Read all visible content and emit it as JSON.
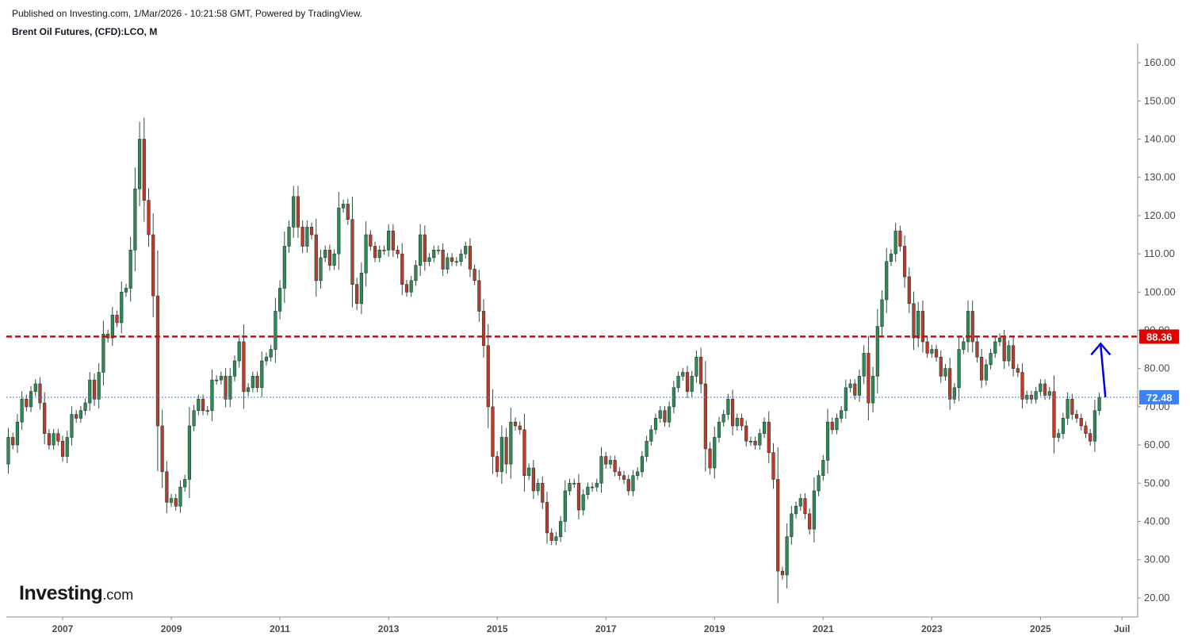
{
  "header": {
    "published": "Published on Investing.com, 1/Mar/2026 - 10:21:58 GMT, Powered by TradingView.",
    "symbol": "Brent Oil Futures, (CFD):LCO, M"
  },
  "logo": {
    "brand": "Investing",
    "suffix": ".com"
  },
  "colors": {
    "up": "#2e8b57",
    "down": "#c0392b",
    "wick": "#2f4f3f",
    "resistance": "#e00000",
    "current": "#3b82f6",
    "arrow": "#0000ee",
    "axis": "#8a8a8a"
  },
  "chart_data": {
    "type": "candlestick",
    "title": "Brent Oil Futures, (CFD):LCO, M",
    "interval": "M",
    "ylim": [
      15,
      165
    ],
    "xlim": [
      "2006-01",
      "2026-09"
    ],
    "y_ticks": [
      "20.00",
      "30.00",
      "40.00",
      "50.00",
      "60.00",
      "70.00",
      "80.00",
      "90.00",
      "100.00",
      "110.00",
      "120.00",
      "130.00",
      "140.00",
      "150.00",
      "160.00"
    ],
    "x_ticks": [
      "2007",
      "2009",
      "2011",
      "2013",
      "2015",
      "2017",
      "2019",
      "2021",
      "2023",
      "2025",
      "Juil"
    ],
    "horizontal_lines": [
      {
        "value": 88.36,
        "label": "88.36",
        "style": "dashed",
        "color": "#e00000"
      },
      {
        "value": 72.48,
        "label": "72.48",
        "style": "dotted",
        "color": "#3b82f6"
      }
    ],
    "annotation": {
      "type": "arrow",
      "from_date": "2026-03",
      "from_value": 72.5,
      "to_date": "2026-03",
      "to_value": 86.5,
      "color": "#0000ee"
    },
    "close_series": [
      [
        "2006-01",
        62
      ],
      [
        "2006-02",
        60
      ],
      [
        "2006-03",
        66
      ],
      [
        "2006-04",
        72
      ],
      [
        "2006-05",
        70
      ],
      [
        "2006-06",
        74
      ],
      [
        "2006-07",
        76
      ],
      [
        "2006-08",
        71
      ],
      [
        "2006-09",
        63
      ],
      [
        "2006-10",
        60
      ],
      [
        "2006-11",
        63
      ],
      [
        "2006-12",
        61
      ],
      [
        "2007-01",
        57
      ],
      [
        "2007-02",
        62
      ],
      [
        "2007-03",
        68
      ],
      [
        "2007-04",
        67
      ],
      [
        "2007-05",
        69
      ],
      [
        "2007-06",
        71
      ],
      [
        "2007-07",
        77
      ],
      [
        "2007-08",
        72
      ],
      [
        "2007-09",
        79
      ],
      [
        "2007-10",
        89
      ],
      [
        "2007-11",
        88
      ],
      [
        "2007-12",
        94
      ],
      [
        "2008-01",
        92
      ],
      [
        "2008-02",
        100
      ],
      [
        "2008-03",
        101
      ],
      [
        "2008-04",
        111
      ],
      [
        "2008-05",
        127
      ],
      [
        "2008-06",
        140
      ],
      [
        "2008-07",
        124
      ],
      [
        "2008-08",
        115
      ],
      [
        "2008-09",
        99
      ],
      [
        "2008-10",
        65
      ],
      [
        "2008-11",
        53
      ],
      [
        "2008-12",
        45
      ],
      [
        "2009-01",
        46
      ],
      [
        "2009-02",
        44
      ],
      [
        "2009-03",
        49
      ],
      [
        "2009-04",
        51
      ],
      [
        "2009-05",
        65
      ],
      [
        "2009-06",
        69
      ],
      [
        "2009-07",
        72
      ],
      [
        "2009-08",
        69
      ],
      [
        "2009-09",
        69
      ],
      [
        "2009-10",
        77
      ],
      [
        "2009-11",
        77
      ],
      [
        "2009-12",
        78
      ],
      [
        "2010-01",
        72
      ],
      [
        "2010-02",
        78
      ],
      [
        "2010-03",
        82
      ],
      [
        "2010-04",
        87
      ],
      [
        "2010-05",
        74
      ],
      [
        "2010-06",
        75
      ],
      [
        "2010-07",
        78
      ],
      [
        "2010-08",
        75
      ],
      [
        "2010-09",
        82
      ],
      [
        "2010-10",
        83
      ],
      [
        "2010-11",
        85
      ],
      [
        "2010-12",
        95
      ],
      [
        "2011-01",
        101
      ],
      [
        "2011-02",
        112
      ],
      [
        "2011-03",
        117
      ],
      [
        "2011-04",
        125
      ],
      [
        "2011-05",
        117
      ],
      [
        "2011-06",
        112
      ],
      [
        "2011-07",
        117
      ],
      [
        "2011-08",
        115
      ],
      [
        "2011-09",
        103
      ],
      [
        "2011-10",
        109
      ],
      [
        "2011-11",
        111
      ],
      [
        "2011-12",
        107
      ],
      [
        "2012-01",
        110
      ],
      [
        "2012-02",
        122
      ],
      [
        "2012-03",
        123
      ],
      [
        "2012-04",
        119
      ],
      [
        "2012-05",
        102
      ],
      [
        "2012-06",
        97
      ],
      [
        "2012-07",
        105
      ],
      [
        "2012-08",
        115
      ],
      [
        "2012-09",
        112
      ],
      [
        "2012-10",
        109
      ],
      [
        "2012-11",
        111
      ],
      [
        "2012-12",
        111
      ],
      [
        "2013-01",
        116
      ],
      [
        "2013-02",
        111
      ],
      [
        "2013-03",
        110
      ],
      [
        "2013-04",
        102
      ],
      [
        "2013-05",
        100
      ],
      [
        "2013-06",
        103
      ],
      [
        "2013-07",
        107
      ],
      [
        "2013-08",
        115
      ],
      [
        "2013-09",
        108
      ],
      [
        "2013-10",
        109
      ],
      [
        "2013-11",
        111
      ],
      [
        "2013-12",
        111
      ],
      [
        "2014-01",
        106
      ],
      [
        "2014-02",
        109
      ],
      [
        "2014-03",
        108
      ],
      [
        "2014-04",
        108
      ],
      [
        "2014-05",
        110
      ],
      [
        "2014-06",
        112
      ],
      [
        "2014-07",
        106
      ],
      [
        "2014-08",
        103
      ],
      [
        "2014-09",
        95
      ],
      [
        "2014-10",
        86
      ],
      [
        "2014-11",
        70
      ],
      [
        "2014-12",
        57
      ],
      [
        "2015-01",
        53
      ],
      [
        "2015-02",
        62
      ],
      [
        "2015-03",
        55
      ],
      [
        "2015-04",
        66
      ],
      [
        "2015-05",
        65
      ],
      [
        "2015-06",
        64
      ],
      [
        "2015-07",
        52
      ],
      [
        "2015-08",
        54
      ],
      [
        "2015-09",
        48
      ],
      [
        "2015-10",
        50
      ],
      [
        "2015-11",
        45
      ],
      [
        "2015-12",
        37
      ],
      [
        "2016-01",
        35
      ],
      [
        "2016-02",
        36
      ],
      [
        "2016-03",
        40
      ],
      [
        "2016-04",
        48
      ],
      [
        "2016-05",
        50
      ],
      [
        "2016-06",
        50
      ],
      [
        "2016-07",
        43
      ],
      [
        "2016-08",
        47
      ],
      [
        "2016-09",
        49
      ],
      [
        "2016-10",
        49
      ],
      [
        "2016-11",
        50
      ],
      [
        "2016-12",
        57
      ],
      [
        "2017-01",
        55
      ],
      [
        "2017-02",
        56
      ],
      [
        "2017-03",
        53
      ],
      [
        "2017-04",
        52
      ],
      [
        "2017-05",
        51
      ],
      [
        "2017-06",
        48
      ],
      [
        "2017-07",
        52
      ],
      [
        "2017-08",
        53
      ],
      [
        "2017-09",
        57
      ],
      [
        "2017-10",
        61
      ],
      [
        "2017-11",
        64
      ],
      [
        "2017-12",
        67
      ],
      [
        "2018-01",
        69
      ],
      [
        "2018-02",
        66
      ],
      [
        "2018-03",
        70
      ],
      [
        "2018-04",
        75
      ],
      [
        "2018-05",
        78
      ],
      [
        "2018-06",
        79
      ],
      [
        "2018-07",
        74
      ],
      [
        "2018-08",
        78
      ],
      [
        "2018-09",
        83
      ],
      [
        "2018-10",
        76
      ],
      [
        "2018-11",
        59
      ],
      [
        "2018-12",
        54
      ],
      [
        "2019-01",
        62
      ],
      [
        "2019-02",
        66
      ],
      [
        "2019-03",
        68
      ],
      [
        "2019-04",
        72
      ],
      [
        "2019-05",
        65
      ],
      [
        "2019-06",
        67
      ],
      [
        "2019-07",
        65
      ],
      [
        "2019-08",
        61
      ],
      [
        "2019-09",
        61
      ],
      [
        "2019-10",
        60
      ],
      [
        "2019-11",
        63
      ],
      [
        "2019-12",
        66
      ],
      [
        "2020-01",
        58
      ],
      [
        "2020-02",
        51
      ],
      [
        "2020-03",
        27
      ],
      [
        "2020-04",
        26
      ],
      [
        "2020-05",
        36
      ],
      [
        "2020-06",
        42
      ],
      [
        "2020-07",
        44
      ],
      [
        "2020-08",
        46
      ],
      [
        "2020-09",
        42
      ],
      [
        "2020-10",
        38
      ],
      [
        "2020-11",
        48
      ],
      [
        "2020-12",
        52
      ],
      [
        "2021-01",
        56
      ],
      [
        "2021-02",
        66
      ],
      [
        "2021-03",
        64
      ],
      [
        "2021-04",
        67
      ],
      [
        "2021-05",
        69
      ],
      [
        "2021-06",
        75
      ],
      [
        "2021-07",
        76
      ],
      [
        "2021-08",
        73
      ],
      [
        "2021-09",
        78
      ],
      [
        "2021-10",
        84
      ],
      [
        "2021-11",
        71
      ],
      [
        "2021-12",
        78
      ],
      [
        "2022-01",
        91
      ],
      [
        "2022-02",
        98
      ],
      [
        "2022-03",
        108
      ],
      [
        "2022-04",
        110
      ],
      [
        "2022-05",
        116
      ],
      [
        "2022-06",
        112
      ],
      [
        "2022-07",
        104
      ],
      [
        "2022-08",
        97
      ],
      [
        "2022-09",
        88
      ],
      [
        "2022-10",
        95
      ],
      [
        "2022-11",
        87
      ],
      [
        "2022-12",
        84
      ],
      [
        "2023-01",
        85
      ],
      [
        "2023-02",
        83
      ],
      [
        "2023-03",
        78
      ],
      [
        "2023-04",
        80
      ],
      [
        "2023-05",
        72
      ],
      [
        "2023-06",
        75
      ],
      [
        "2023-07",
        85
      ],
      [
        "2023-08",
        87
      ],
      [
        "2023-09",
        95
      ],
      [
        "2023-10",
        87
      ],
      [
        "2023-11",
        83
      ],
      [
        "2023-12",
        77
      ],
      [
        "2024-01",
        81
      ],
      [
        "2024-02",
        84
      ],
      [
        "2024-03",
        87
      ],
      [
        "2024-04",
        88
      ],
      [
        "2024-05",
        82
      ],
      [
        "2024-06",
        86
      ],
      [
        "2024-07",
        80
      ],
      [
        "2024-08",
        79
      ],
      [
        "2024-09",
        72
      ],
      [
        "2024-10",
        73
      ],
      [
        "2024-11",
        72
      ],
      [
        "2024-12",
        74
      ],
      [
        "2025-01",
        76
      ],
      [
        "2025-02",
        73
      ],
      [
        "2025-03",
        74
      ],
      [
        "2025-04",
        62
      ],
      [
        "2025-05",
        63
      ],
      [
        "2025-06",
        67
      ],
      [
        "2025-07",
        72
      ],
      [
        "2025-08",
        68
      ],
      [
        "2025-09",
        67
      ],
      [
        "2025-10",
        65
      ],
      [
        "2025-11",
        63
      ],
      [
        "2025-12",
        61
      ],
      [
        "2026-01",
        69
      ],
      [
        "2026-02",
        72.48
      ]
    ]
  }
}
